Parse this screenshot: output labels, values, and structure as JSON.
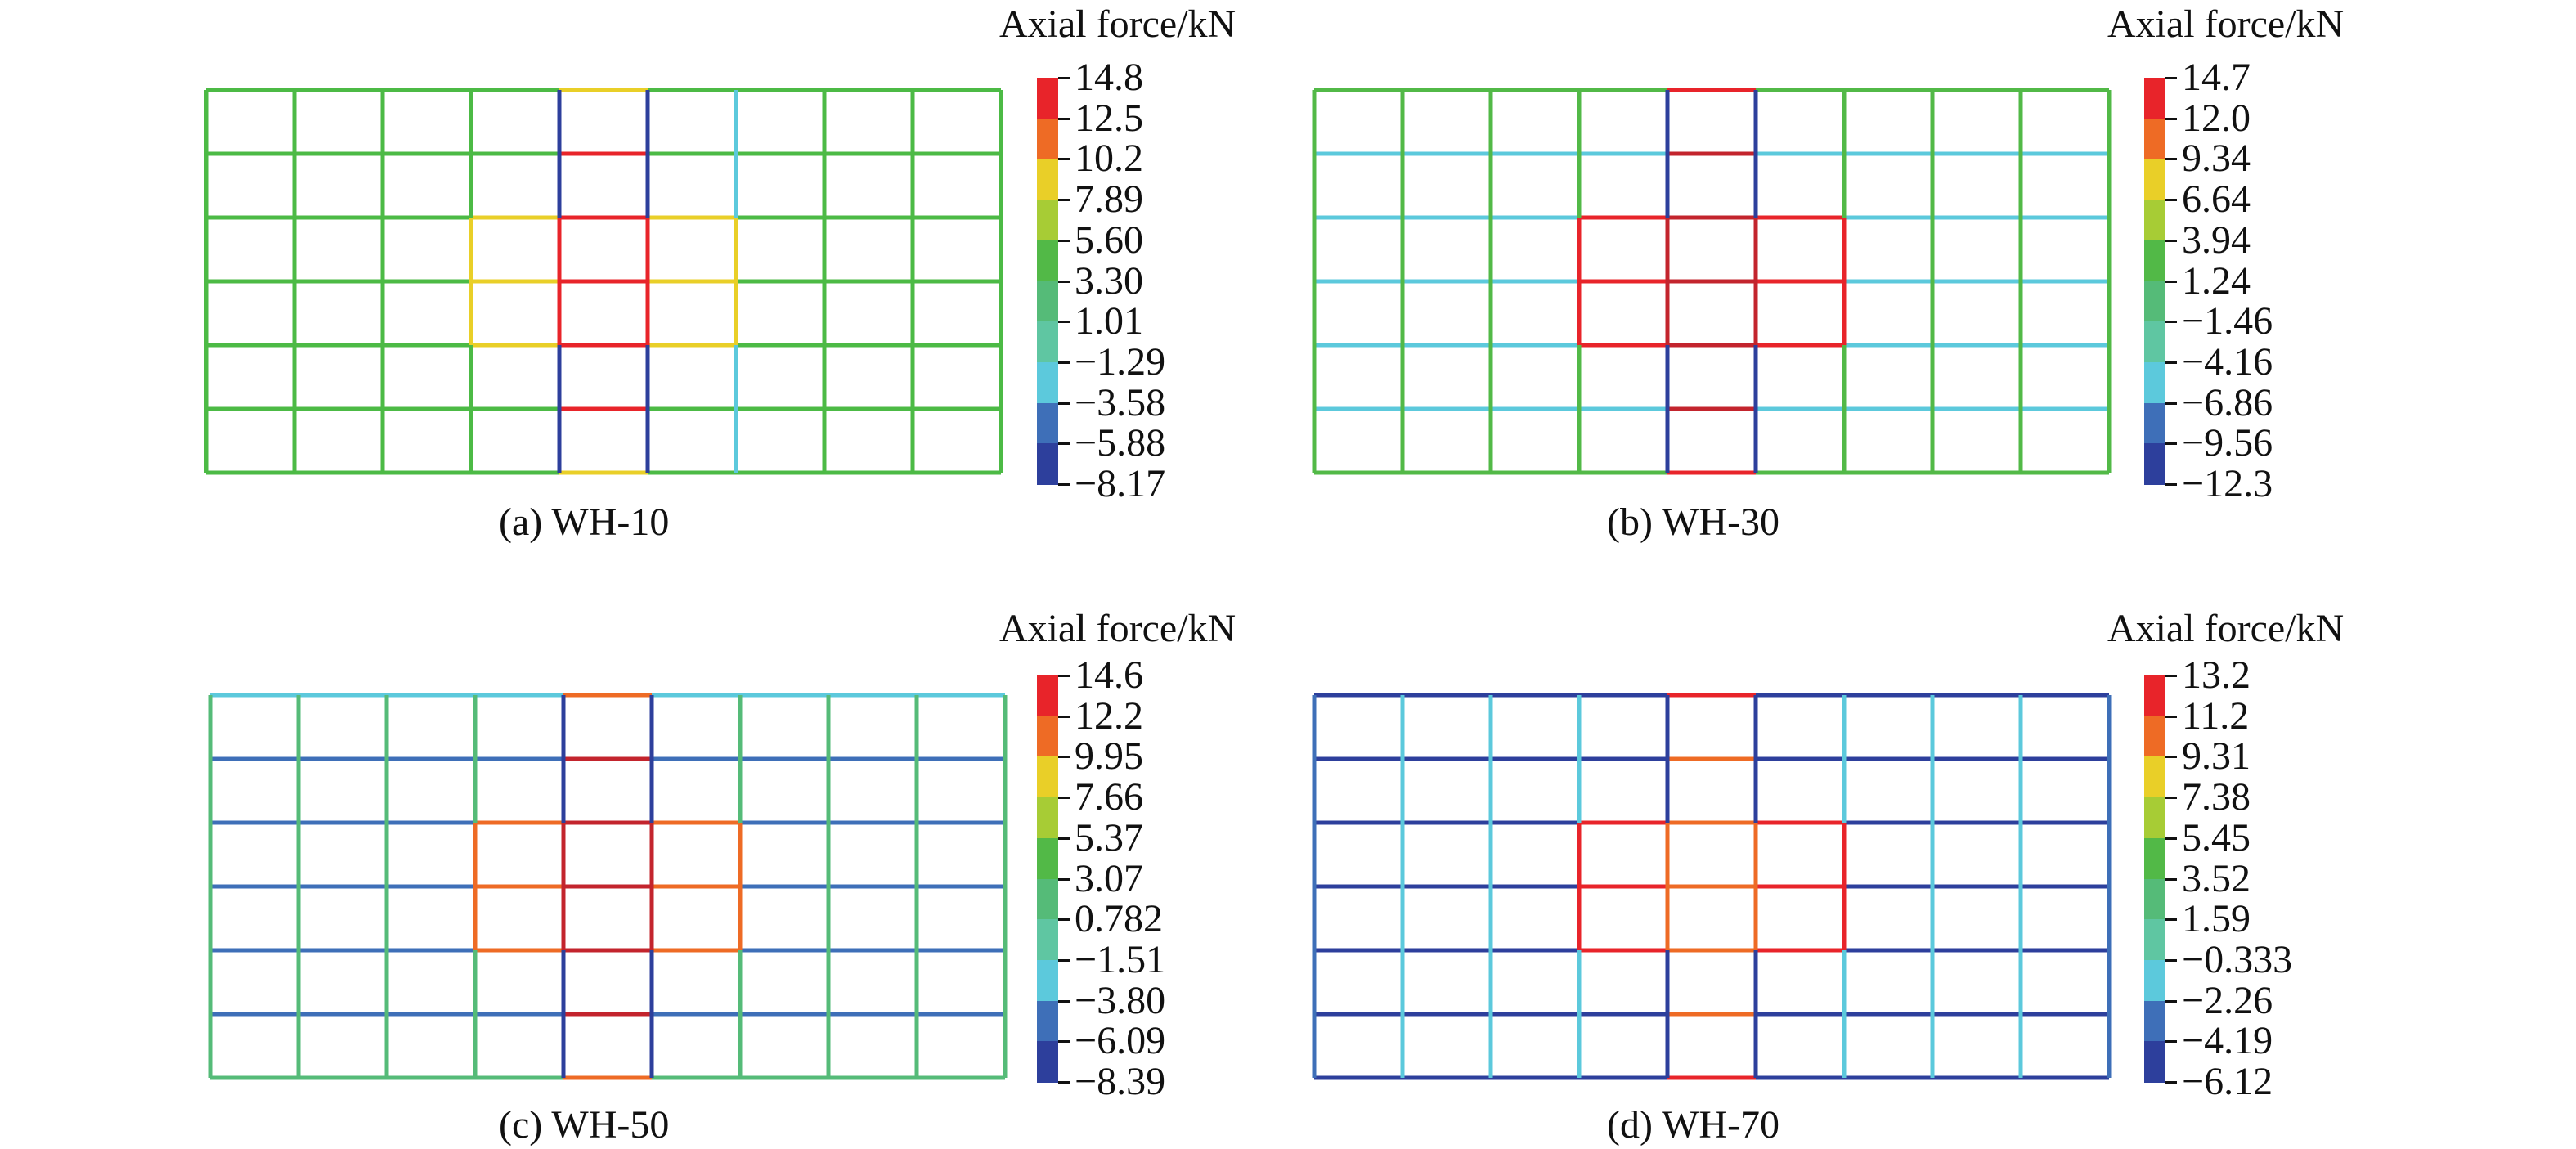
{
  "legend_title": "Axial force/kN",
  "legend_colors": [
    "#e8242a",
    "#ee6b25",
    "#e9cf28",
    "#a7cc35",
    "#52b947",
    "#55bb78",
    "#5fc6a2",
    "#5cc9dc",
    "#3e6fb8",
    "#2d3f9c"
  ],
  "panels": [
    {
      "caption": "(a) WH-10",
      "legend_values": [
        "14.8",
        "12.5",
        "10.2",
        "7.89",
        "5.60",
        "3.30",
        "1.01",
        "−1.29",
        "−3.58",
        "−5.88",
        "−8.17"
      ],
      "base_color": "#4cba45",
      "col_colors": [
        "#4cba45",
        "#4cba45",
        "#4cba45",
        "#4cba45",
        "#2d3f9c",
        "#2d3f9c",
        "#5cc9dc",
        "#4cba45",
        "#4cba45",
        "#4cba45"
      ],
      "row_colors": [
        "#4cba45",
        "#4cba45",
        "#4cba45",
        "#4cba45",
        "#4cba45",
        "#4cba45",
        "#4cba45"
      ],
      "center_color": "#e8242a",
      "accent_color": "#e9cf28"
    },
    {
      "caption": "(b) WH-30",
      "legend_values": [
        "14.7",
        "12.0",
        "9.34",
        "6.64",
        "3.94",
        "1.24",
        "−1.46",
        "−4.16",
        "−6.86",
        "−9.56",
        "−12.3"
      ],
      "base_color": "#52b947",
      "col_colors": [
        "#52b947",
        "#52b947",
        "#52b947",
        "#52b947",
        "#2d3f9c",
        "#2d3f9c",
        "#52b947",
        "#52b947",
        "#52b947",
        "#52b947"
      ],
      "row_colors": [
        "#52b947",
        "#5cc9dc",
        "#5cc9dc",
        "#5cc9dc",
        "#5cc9dc",
        "#5cc9dc",
        "#52b947"
      ],
      "center_color": "#c3242d",
      "accent_color": "#e8242a"
    },
    {
      "caption": "(c) WH-50",
      "legend_values": [
        "14.6",
        "12.2",
        "9.95",
        "7.66",
        "5.37",
        "3.07",
        "0.782",
        "−1.51",
        "−3.80",
        "−6.09",
        "−8.39"
      ],
      "base_color": "#55bb78",
      "col_colors": [
        "#55bb78",
        "#55bb78",
        "#55bb78",
        "#55bb78",
        "#2d3f9c",
        "#2d3f9c",
        "#55bb78",
        "#55bb78",
        "#55bb78",
        "#55bb78"
      ],
      "row_colors": [
        "#5cc9dc",
        "#3e6fb8",
        "#3e6fb8",
        "#3e6fb8",
        "#3e6fb8",
        "#3e6fb8",
        "#55bb78"
      ],
      "center_color": "#c3242d",
      "accent_color": "#ee6b25"
    },
    {
      "caption": "(d) WH-70",
      "legend_values": [
        "13.2",
        "11.2",
        "9.31",
        "7.38",
        "5.45",
        "3.52",
        "1.59",
        "−0.333",
        "−2.26",
        "−4.19",
        "−6.12"
      ],
      "base_color": "#5cc9dc",
      "col_colors": [
        "#3e6fb8",
        "#5cc9dc",
        "#5cc9dc",
        "#5cc9dc",
        "#2d3f9c",
        "#2d3f9c",
        "#5cc9dc",
        "#5cc9dc",
        "#5cc9dc",
        "#3e6fb8"
      ],
      "row_colors": [
        "#2d3f9c",
        "#2d3f9c",
        "#2d3f9c",
        "#2d3f9c",
        "#2d3f9c",
        "#2d3f9c",
        "#2d3f9c"
      ],
      "center_color": "#ee6b25",
      "accent_color": "#e8242a"
    }
  ]
}
